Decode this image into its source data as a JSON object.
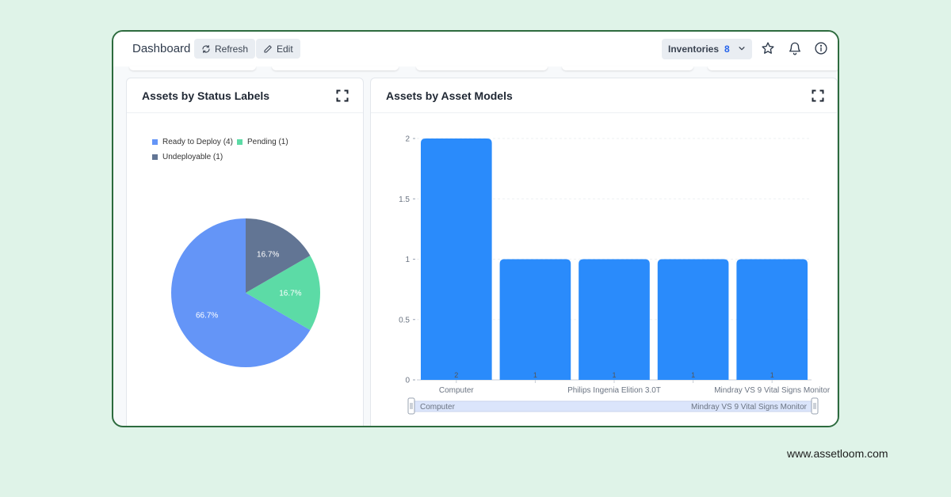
{
  "toolbar": {
    "title": "Dashboard",
    "refresh_label": "Refresh",
    "edit_label": "Edit",
    "inventories_label": "Inventories",
    "inventories_count": "8"
  },
  "status_card": {
    "title": "Assets by Status Labels",
    "legend": [
      "Ready to Deploy (4)",
      "Pending (1)",
      "Undeployable (1)"
    ]
  },
  "models_card": {
    "title": "Assets by Asset Models",
    "zoom_start_label": "Computer",
    "zoom_end_label": "Mindray VS 9 Vital Signs Monitor"
  },
  "colors": {
    "ready": "#6495f7",
    "pending": "#5cdba6",
    "undeployable": "#627594",
    "bar": "#2a8bfb",
    "accent": "#2563eb"
  },
  "chart_data": [
    {
      "type": "pie",
      "title": "Assets by Status Labels",
      "labels": [
        "Ready to Deploy",
        "Pending",
        "Undeployable"
      ],
      "values": [
        4,
        1,
        1
      ],
      "slice_labels": [
        "66.7%",
        "16.7%",
        "16.7%"
      ],
      "colors": [
        "#6495f7",
        "#5cdba6",
        "#627594"
      ],
      "legend_position": "top-left"
    },
    {
      "type": "bar",
      "title": "Assets by Asset Models",
      "categories": [
        "Computer",
        "",
        "Philips Ingenia Elition 3.0T",
        "",
        "Mindray VS 9 Vital Signs Monitor"
      ],
      "values": [
        2,
        1,
        1,
        1,
        1
      ],
      "value_labels": [
        "2",
        "1",
        "1",
        "1",
        "1"
      ],
      "ylim": [
        0,
        2
      ],
      "yticks": [
        "0",
        "0.5",
        "1",
        "1.5",
        "2"
      ],
      "grid": true
    }
  ]
}
